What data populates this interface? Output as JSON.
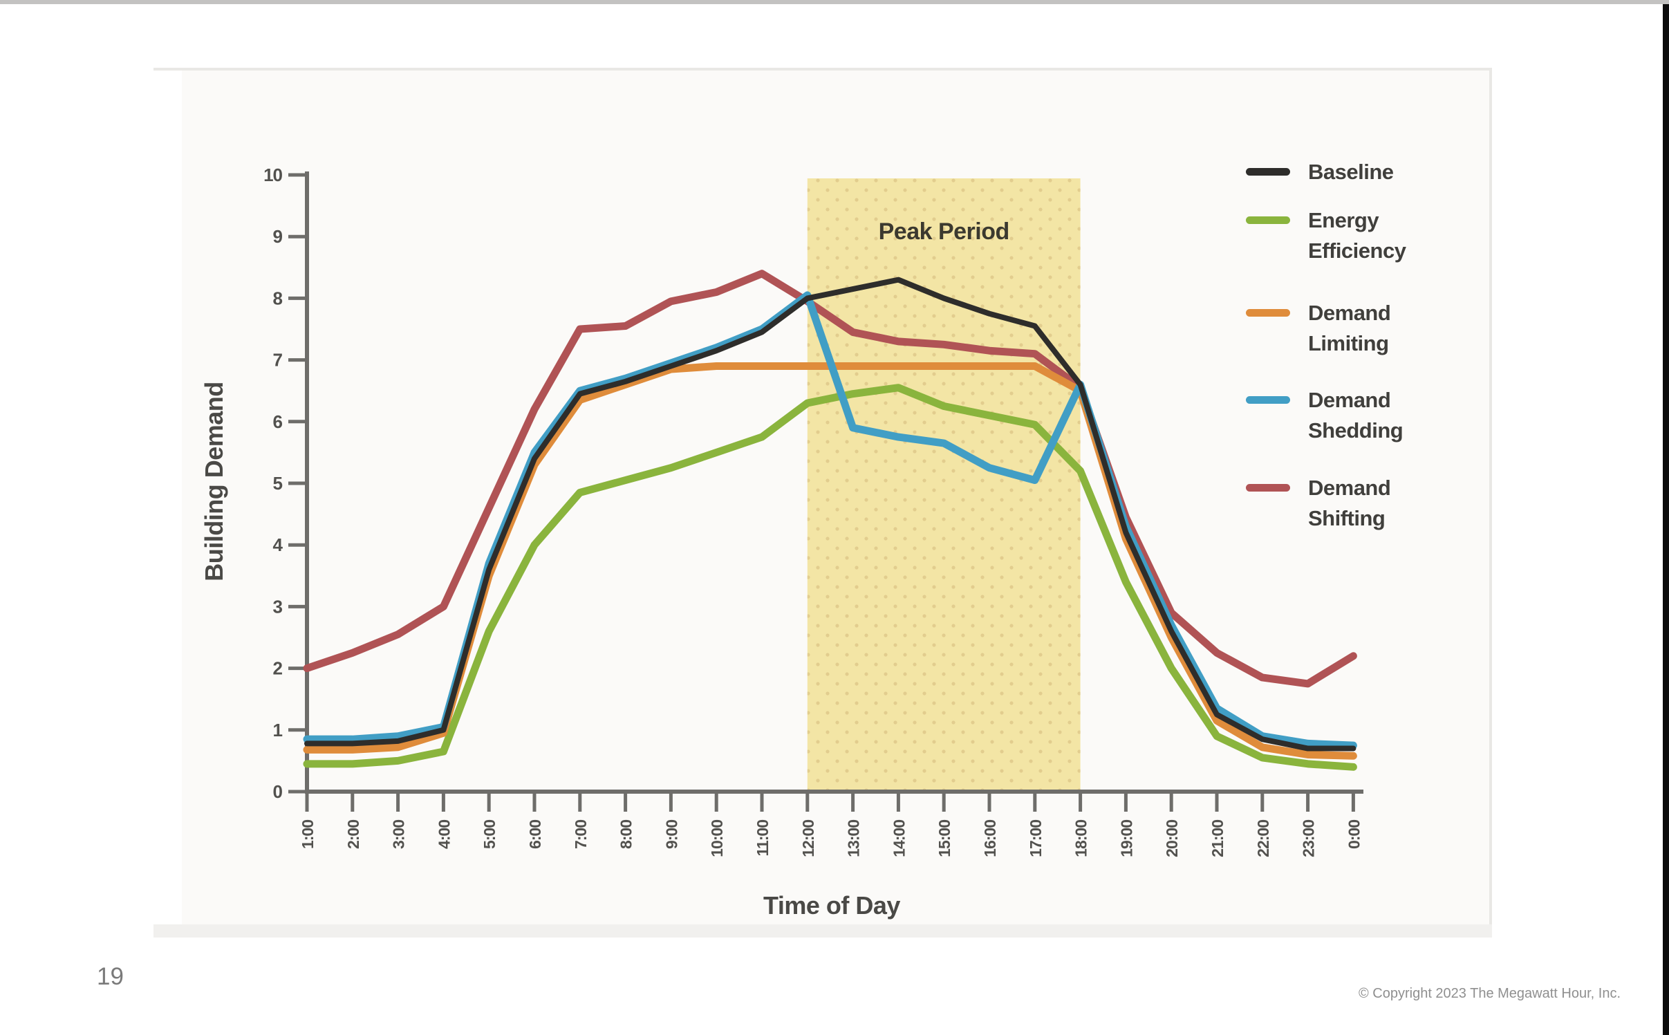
{
  "page": {
    "top_bar_color": "#c3c2c1",
    "right_edge_color": "#0c0c0c",
    "slide_background": "#fbfaf8"
  },
  "footer": {
    "page_number": "19",
    "copyright": "© Copyright 2023 The Megawatt Hour, Inc."
  },
  "chart_data": {
    "type": "line",
    "title": "",
    "xlabel": "Time of Day",
    "ylabel": "Building Demand",
    "ylim": [
      0,
      10
    ],
    "yticks": [
      0,
      1,
      2,
      3,
      4,
      5,
      6,
      7,
      8,
      9,
      10
    ],
    "grid": false,
    "legend_position": "right",
    "axis_color": "#6e6d6a",
    "tick_label_color": "#52514e",
    "axis_title_color": "#4a4946",
    "legend_text_color": "#403f3c",
    "categories": [
      "1:00",
      "2:00",
      "3:00",
      "4:00",
      "5:00",
      "6:00",
      "7:00",
      "8:00",
      "9:00",
      "10:00",
      "11:00",
      "12:00",
      "13:00",
      "14:00",
      "15:00",
      "16:00",
      "17:00",
      "18:00",
      "19:00",
      "20:00",
      "21:00",
      "22:00",
      "23:00",
      "0:00"
    ],
    "band": {
      "label": "Peak Period",
      "from": "12:00",
      "to": "18:00",
      "fill": "#f3e5a5",
      "dot_color": "#e2cd8e",
      "label_color": "#3b392f"
    },
    "series": [
      {
        "name": "Baseline",
        "color": "#2e2d2b",
        "values": [
          0.78,
          0.78,
          0.82,
          1.0,
          3.6,
          5.4,
          6.45,
          6.65,
          6.9,
          7.15,
          7.45,
          8.0,
          8.15,
          8.3,
          8.0,
          7.75,
          7.55,
          6.6,
          4.2,
          2.6,
          1.25,
          0.85,
          0.7,
          0.7
        ]
      },
      {
        "name": "Energy Efficiency",
        "color": "#8ab43d",
        "values": [
          0.45,
          0.45,
          0.5,
          0.65,
          2.6,
          4.0,
          4.85,
          5.05,
          5.25,
          5.5,
          5.75,
          6.3,
          6.45,
          6.55,
          6.25,
          6.1,
          5.95,
          5.2,
          3.4,
          2.0,
          0.9,
          0.55,
          0.45,
          0.4
        ]
      },
      {
        "name": "Demand Limiting",
        "color": "#df8c3b",
        "values": [
          0.68,
          0.68,
          0.72,
          0.95,
          3.5,
          5.3,
          6.35,
          6.6,
          6.85,
          6.9,
          6.9,
          6.9,
          6.9,
          6.9,
          6.9,
          6.9,
          6.9,
          6.5,
          4.1,
          2.5,
          1.15,
          0.72,
          0.6,
          0.58
        ]
      },
      {
        "name": "Demand Shedding",
        "color": "#419ec5",
        "values": [
          0.85,
          0.85,
          0.9,
          1.05,
          3.7,
          5.5,
          6.5,
          6.7,
          6.95,
          7.2,
          7.5,
          8.05,
          5.9,
          5.75,
          5.65,
          5.25,
          5.05,
          6.6,
          4.3,
          2.7,
          1.35,
          0.9,
          0.78,
          0.75
        ]
      },
      {
        "name": "Demand Shifting",
        "color": "#b05355",
        "values": [
          2.0,
          2.25,
          2.55,
          3.0,
          4.6,
          6.2,
          7.5,
          7.55,
          7.95,
          8.1,
          8.4,
          7.95,
          7.45,
          7.3,
          7.25,
          7.15,
          7.1,
          6.55,
          4.45,
          2.9,
          2.25,
          1.85,
          1.75,
          2.2
        ]
      }
    ]
  }
}
